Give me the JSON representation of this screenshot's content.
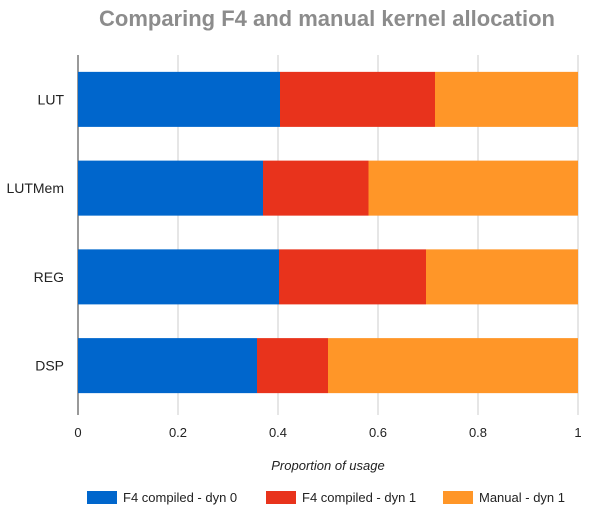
{
  "chart_data": {
    "type": "bar",
    "orientation": "horizontal",
    "stacked": true,
    "title": "Comparing F4 and manual kernel allocation",
    "xlabel": "Proportion of usage",
    "ylabel": "",
    "xlim": [
      0,
      1
    ],
    "xticks": [
      "0",
      "0.2",
      "0.4",
      "0.6",
      "0.8",
      "1"
    ],
    "categories": [
      "LUT",
      "LUTMem",
      "REG",
      "DSP"
    ],
    "series": [
      {
        "name": "F4 compiled - dyn 0",
        "color": "#0066cc",
        "values": [
          0.404,
          0.37,
          0.402,
          0.358
        ]
      },
      {
        "name": "F4 compiled - dyn 1",
        "color": "#e8331c",
        "values": [
          0.31,
          0.211,
          0.294,
          0.142
        ]
      },
      {
        "name": "Manual - dyn 1",
        "color": "#ff9628",
        "values": [
          0.286,
          0.419,
          0.304,
          0.5
        ]
      }
    ],
    "grid": true,
    "legend_position": "bottom"
  }
}
